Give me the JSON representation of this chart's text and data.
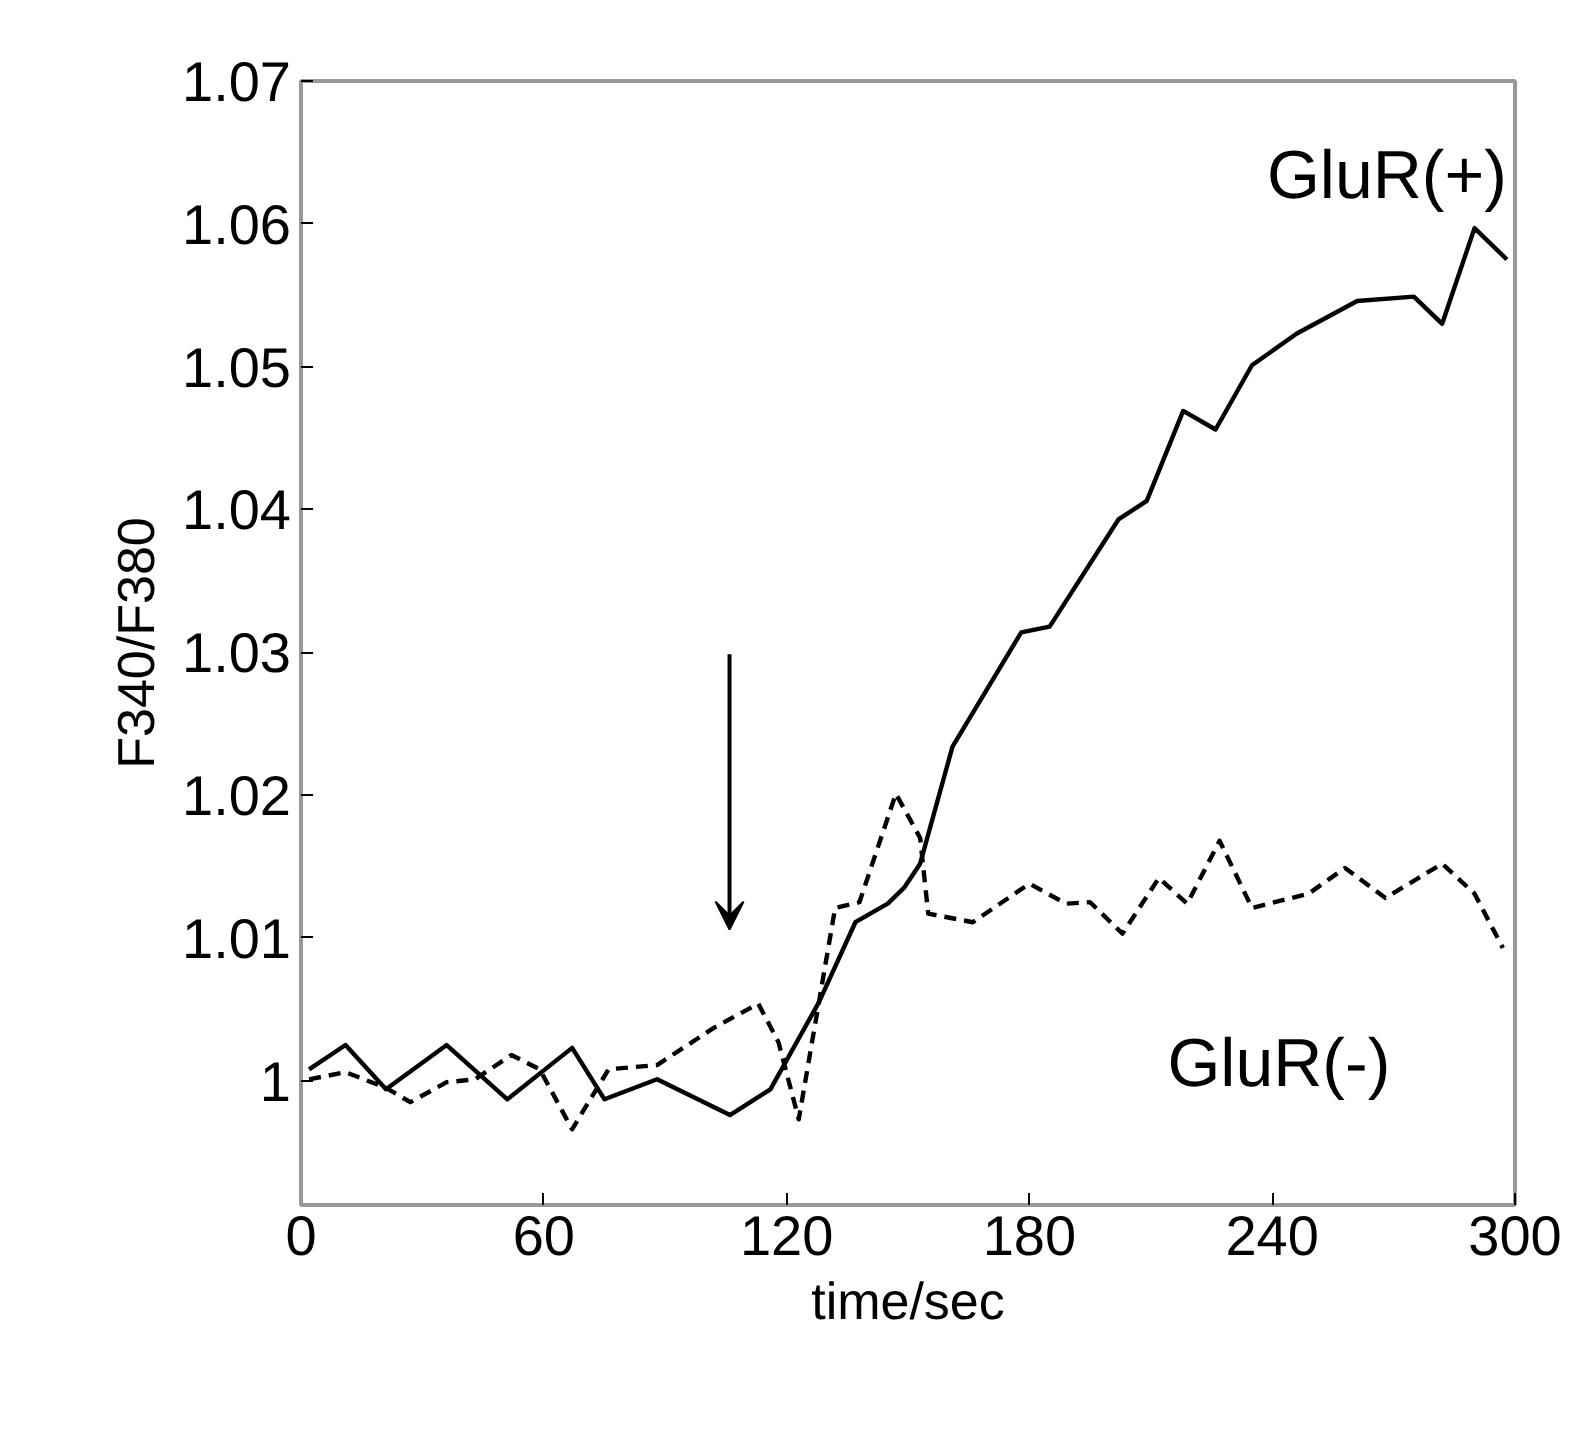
{
  "chart_data": {
    "type": "line",
    "xlabel": "time/sec",
    "ylabel": "F340/F380",
    "xlim": [
      0,
      300
    ],
    "ylim": [
      0.9913,
      1.07
    ],
    "xticks": [
      0,
      60,
      120,
      180,
      240,
      300
    ],
    "yticks": [
      {
        "value": 1,
        "label": "1"
      },
      1.01,
      1.02,
      1.03,
      1.04,
      1.05,
      1.06,
      1.07
    ],
    "grid": false,
    "marker": "none",
    "series": [
      {
        "name": "GluR(+)",
        "color": "#000000",
        "line_style": "solid",
        "x": [
          2,
          11,
          21,
          36,
          51,
          67,
          75,
          88,
          106,
          116,
          128,
          137,
          145,
          149,
          153,
          161,
          178,
          185,
          202,
          209,
          218,
          226,
          235,
          246,
          261,
          275,
          282,
          290,
          298
        ],
        "values": [
          1.0008,
          1.0025,
          0.9994,
          1.0025,
          0.9987,
          1.0023,
          0.9987,
          1.0001,
          0.9976,
          0.9994,
          1.0055,
          1.0111,
          1.0124,
          1.0135,
          1.0152,
          1.0234,
          1.0314,
          1.0318,
          1.0393,
          1.0406,
          1.0469,
          1.0456,
          1.0501,
          1.0523,
          1.0546,
          1.0549,
          1.053,
          1.0597,
          1.0575
        ]
      },
      {
        "name": "GluR(-)",
        "color": "#000000",
        "line_style": "dashed",
        "x": [
          2,
          11,
          21,
          27,
          36,
          43,
          52,
          59,
          67,
          76,
          88,
          102,
          113,
          118,
          123,
          132,
          138,
          147,
          153,
          155,
          166,
          180,
          189,
          195,
          203,
          212,
          219,
          227,
          235,
          249,
          258,
          268,
          282,
          290,
          297
        ],
        "values": [
          1.0001,
          1.0006,
          0.9995,
          0.9985,
          0.9999,
          1.0001,
          1.0018,
          1.0008,
          0.9966,
          1.0008,
          1.0011,
          1.0037,
          1.0054,
          1.0027,
          0.9973,
          1.0121,
          1.0125,
          1.0201,
          1.017,
          1.0117,
          1.0111,
          1.0138,
          1.0124,
          1.0125,
          1.0103,
          1.0142,
          1.0124,
          1.0168,
          1.0121,
          1.0131,
          1.0149,
          1.0128,
          1.0152,
          1.0131,
          1.0093
        ]
      }
    ]
  }
}
